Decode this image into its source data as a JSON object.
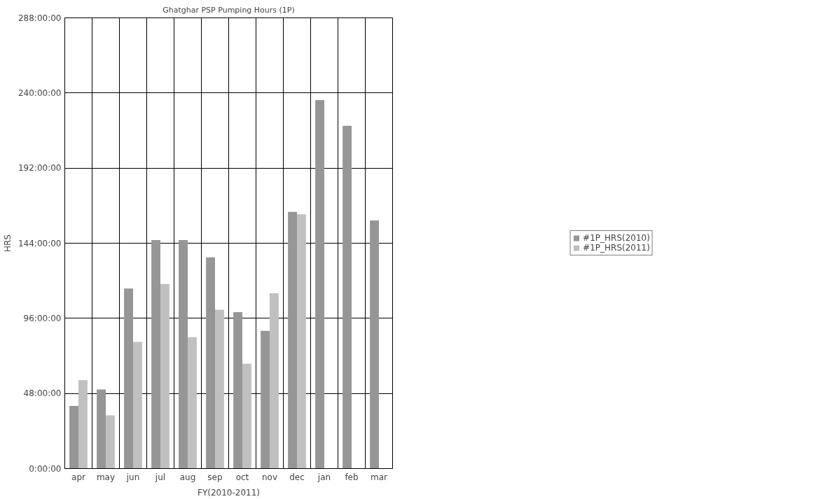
{
  "chart_data": {
    "type": "bar",
    "title": "Ghatghar PSP Pumping Hours (1P)",
    "xlabel": "FY(2010-2011)",
    "ylabel": "HRS",
    "categories": [
      "apr",
      "may",
      "jun",
      "jul",
      "aug",
      "sep",
      "oct",
      "nov",
      "dec",
      "jan",
      "feb",
      "mar"
    ],
    "series": [
      {
        "name": "#1P_HRS(2010)",
        "color": "#969696",
        "values": [
          40,
          50.5,
          115,
          146,
          146,
          135,
          100,
          88,
          164,
          235.5,
          219,
          158.5
        ]
      },
      {
        "name": "#1P_HRS(2011)",
        "color": "#c0c0c0",
        "values": [
          56.5,
          34,
          81,
          118,
          84,
          101.5,
          67,
          112,
          162.5,
          null,
          null,
          null
        ]
      }
    ],
    "ylim": [
      0,
      288
    ],
    "yticks": [
      {
        "value": 0,
        "label": "0:00:00"
      },
      {
        "value": 48,
        "label": "48:00:00"
      },
      {
        "value": 96,
        "label": "96:00:00"
      },
      {
        "value": 144,
        "label": "144:00:00"
      },
      {
        "value": 192,
        "label": "192:00:00"
      },
      {
        "value": 240,
        "label": "240:00:00"
      },
      {
        "value": 288,
        "label": "288:00:00"
      }
    ],
    "grid": true,
    "legend": "right"
  }
}
